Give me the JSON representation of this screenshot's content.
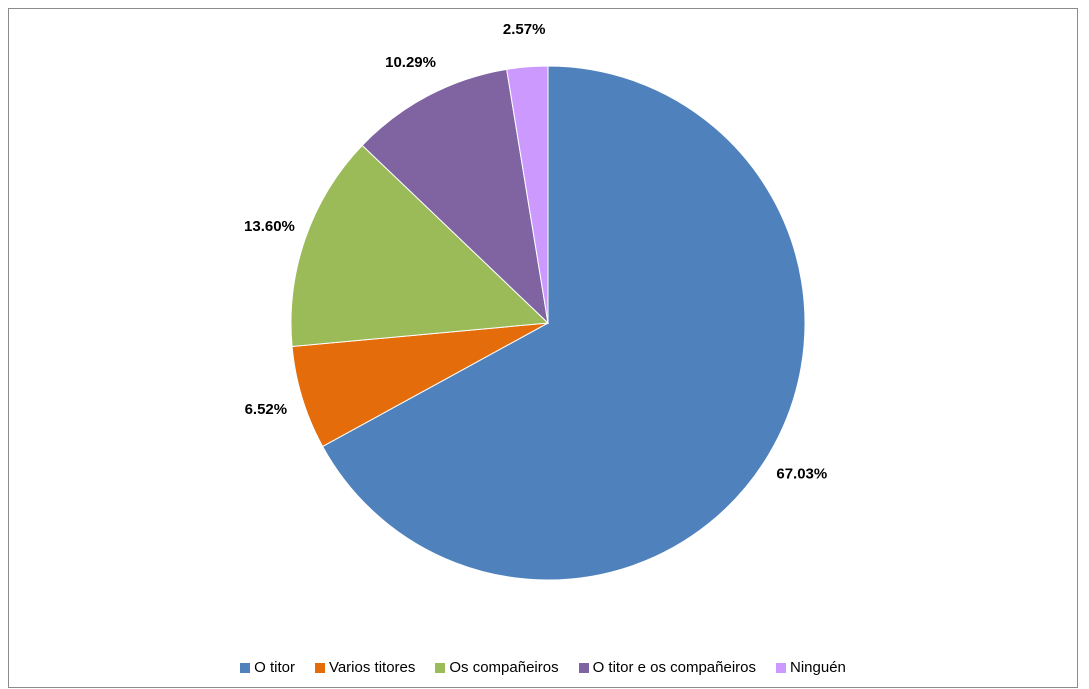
{
  "chart_data": {
    "type": "pie",
    "title": "",
    "start_angle": "12 o'clock",
    "direction": "clockwise",
    "slices": [
      {
        "label": "O titor",
        "value": 67.03,
        "data_label": "67.03%",
        "color": "#4F81BD"
      },
      {
        "label": "Varios titores",
        "value": 6.52,
        "data_label": "6.52%",
        "color": "#E46C0A"
      },
      {
        "label": "Os compañeiros",
        "value": 13.6,
        "data_label": "13.60%",
        "color": "#9BBB59"
      },
      {
        "label": "O titor e os compañeiros",
        "value": 10.29,
        "data_label": "10.29%",
        "color": "#8064A2"
      },
      {
        "label": "Ninguén",
        "value": 2.57,
        "data_label": "2.57%",
        "color": "#CC99FF"
      }
    ],
    "legend_position": "bottom"
  }
}
